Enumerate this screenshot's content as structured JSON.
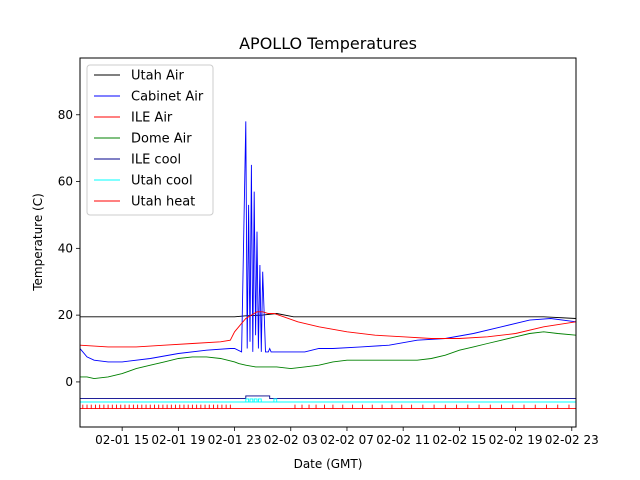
{
  "chart_data": {
    "type": "line",
    "title": "APOLLO Temperatures",
    "xlabel": "Date (GMT)",
    "ylabel": "Temperature (C)",
    "xlim": [
      12,
      47.3
    ],
    "ylim": [
      -13.5,
      97
    ],
    "x_unit": "hours since 02-01 00:00 GMT",
    "grid": false,
    "legend_position": "top-left",
    "xticks": [
      {
        "value": 15,
        "label": "02-01 15"
      },
      {
        "value": 19,
        "label": "02-01 19"
      },
      {
        "value": 23,
        "label": "02-01 23"
      },
      {
        "value": 27,
        "label": "02-02 03"
      },
      {
        "value": 31,
        "label": "02-02 07"
      },
      {
        "value": 35,
        "label": "02-02 11"
      },
      {
        "value": 39,
        "label": "02-02 15"
      },
      {
        "value": 43,
        "label": "02-02 19"
      },
      {
        "value": 47,
        "label": "02-02 23"
      }
    ],
    "yticks": [
      {
        "value": 0,
        "label": "0"
      },
      {
        "value": 20,
        "label": "20"
      },
      {
        "value": 40,
        "label": "40"
      },
      {
        "value": 60,
        "label": "60"
      },
      {
        "value": 80,
        "label": "80"
      }
    ],
    "series": [
      {
        "name": "Utah Air",
        "color": "#000000",
        "x": [
          12,
          23,
          23.8,
          25,
          26,
          27.2,
          30,
          35,
          40,
          45,
          47.3
        ],
        "y": [
          19.5,
          19.5,
          19.8,
          20.0,
          20.5,
          19.5,
          19.5,
          19.5,
          19.5,
          19.5,
          19.0
        ]
      },
      {
        "name": "Cabinet Air",
        "color": "#0000ff",
        "x": [
          12,
          12.5,
          13,
          14,
          15,
          17,
          19,
          21,
          22.7,
          23,
          23.5,
          23.8,
          23.9,
          24.0,
          24.1,
          24.2,
          24.3,
          24.4,
          24.5,
          24.6,
          24.7,
          24.8,
          24.9,
          25.0,
          25.2,
          25.4,
          25.5,
          25.6,
          25.8,
          26.0,
          26.3,
          27,
          28,
          29,
          30,
          32,
          34,
          36,
          38,
          40,
          42,
          44,
          45.5,
          47.3
        ],
        "y": [
          10,
          7.5,
          6.5,
          6,
          6,
          7,
          8.5,
          9.5,
          10,
          10,
          9,
          78,
          10,
          53,
          12,
          65,
          9,
          57,
          14,
          45,
          10,
          35,
          9,
          33,
          9,
          9,
          10,
          9,
          9,
          9,
          9,
          9,
          9,
          10,
          10,
          10.5,
          11,
          12.5,
          13,
          14.5,
          16.5,
          18.5,
          19,
          18
        ]
      },
      {
        "name": "ILE Air",
        "color": "#ff0000",
        "x": [
          12,
          14,
          16,
          18,
          20,
          22,
          22.7,
          23.0,
          23.4,
          23.8,
          24.2,
          24.6,
          25.0,
          25.4,
          25.8,
          26.5,
          27.5,
          29,
          31,
          33,
          35,
          37,
          39,
          41,
          43,
          45,
          47.3
        ],
        "y": [
          11,
          10.5,
          10.5,
          11,
          11.5,
          12,
          12.5,
          15,
          17,
          19,
          20,
          21,
          21,
          20.5,
          20.5,
          19.5,
          18,
          16.5,
          15,
          14,
          13.5,
          13,
          13,
          13.5,
          14.5,
          16.5,
          18
        ]
      },
      {
        "name": "Dome Air",
        "color": "#008000",
        "x": [
          12,
          12.5,
          13,
          14,
          15,
          16,
          17,
          18,
          19,
          20,
          21,
          22,
          23,
          23.3,
          23.8,
          24.5,
          25,
          26,
          27,
          28,
          29,
          30,
          31,
          32,
          33,
          34,
          35,
          36,
          37,
          38,
          39,
          40,
          41,
          42,
          43,
          44,
          45,
          46,
          47.3
        ],
        "y": [
          1.5,
          1.5,
          1,
          1.5,
          2.5,
          4,
          5,
          6,
          7,
          7.5,
          7.5,
          7,
          6,
          5.5,
          5,
          4.5,
          4.5,
          4.5,
          4,
          4.5,
          5,
          6,
          6.5,
          6.5,
          6.5,
          6.5,
          6.5,
          6.5,
          7,
          8,
          9.5,
          10.5,
          11.5,
          12.5,
          13.5,
          14.5,
          15,
          14.5,
          14
        ]
      },
      {
        "name": "ILE cool",
        "color": "#00008b",
        "x": [
          12,
          23.8,
          23.8,
          25.5,
          25.5,
          47.3
        ],
        "y": [
          -5,
          -5,
          -4.2,
          -4.2,
          -5,
          -5
        ],
        "y_label": "on/off indicator"
      },
      {
        "name": "Utah cool",
        "color": "#00ffff",
        "x": [
          12,
          47.3
        ],
        "y": [
          -6,
          -6
        ],
        "active_spans": [
          [
            23.8,
            24.0
          ],
          [
            24.1,
            24.3
          ],
          [
            24.4,
            24.6
          ],
          [
            24.7,
            24.9
          ],
          [
            25.8,
            26.0
          ]
        ],
        "y_label": "on/off indicator"
      },
      {
        "name": "Utah heat",
        "color": "#ff0000",
        "x": [
          12,
          47.3
        ],
        "y": [
          -8,
          -8
        ],
        "pulse_times": [
          12.2,
          12.5,
          12.8,
          13.1,
          13.4,
          13.7,
          14.0,
          14.3,
          14.6,
          14.9,
          15.2,
          15.5,
          15.8,
          16.1,
          16.4,
          16.7,
          17.0,
          17.3,
          17.6,
          17.9,
          18.2,
          18.5,
          18.8,
          19.1,
          19.4,
          19.7,
          20.0,
          20.3,
          20.6,
          20.9,
          21.2,
          21.5,
          21.8,
          22.1,
          22.4,
          22.7,
          27.3,
          27.8,
          28.3,
          28.8,
          29.4,
          30.0,
          30.7,
          31.4,
          32.1,
          32.8,
          33.5,
          34.2,
          34.9,
          35.6,
          36.4,
          37.2,
          38.0,
          38.8,
          39.6,
          40.4,
          41.2,
          42.0,
          42.8,
          43.6,
          44.4,
          45.2,
          46.0,
          46.8
        ],
        "y_label": "on/off indicator"
      }
    ]
  }
}
